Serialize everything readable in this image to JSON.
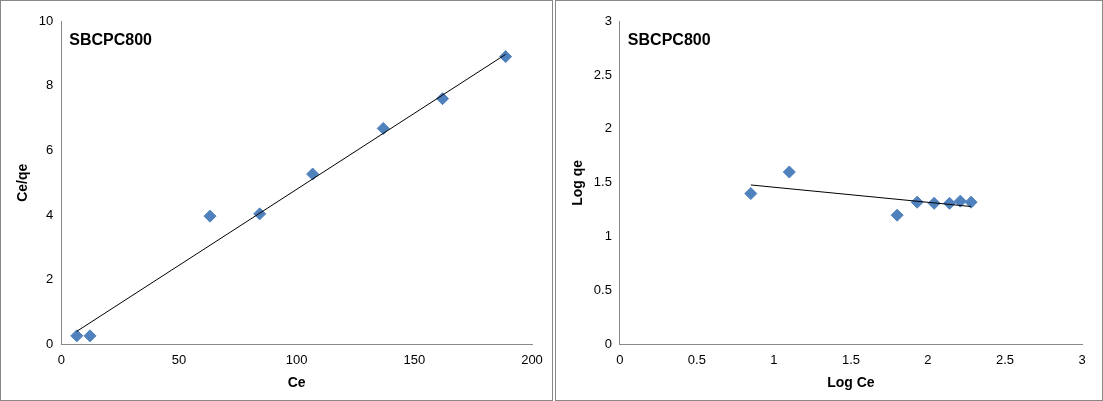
{
  "chart_data": [
    {
      "type": "scatter",
      "title": "SBCPC800",
      "xlabel": "Ce",
      "ylabel": "Ce/qe",
      "xlim": [
        0,
        200
      ],
      "xticks": [
        0,
        50,
        100,
        150,
        200
      ],
      "ylim": [
        0,
        10
      ],
      "yticks": [
        0,
        2,
        4,
        6,
        8,
        10
      ],
      "grid": false,
      "legend": false,
      "marker": "diamond",
      "series": [
        {
          "color": "#4f81bd",
          "x": [
            6.6,
            12.2,
            63.2,
            84.3,
            106.8,
            136.8,
            162,
            188.8
          ],
          "values": [
            0.27,
            0.27,
            3.97,
            4.04,
            5.27,
            6.68,
            7.6,
            8.9
          ]
        },
        {
          "type": "line",
          "color": "#000000",
          "marker": "none",
          "x": [
            6.6,
            188.8
          ],
          "values": [
            0.41,
            8.97
          ]
        }
      ]
    },
    {
      "type": "scatter",
      "title": "SBCPC800",
      "xlabel": "Log Ce",
      "ylabel": "Log qe",
      "xlim": [
        0,
        3
      ],
      "xticks": [
        0,
        0.5,
        1,
        1.5,
        2,
        2.5,
        3
      ],
      "ylim": [
        0,
        3
      ],
      "yticks": [
        0,
        0.5,
        1,
        1.5,
        2,
        2.5,
        3
      ],
      "grid": false,
      "legend": false,
      "marker": "diamond",
      "series": [
        {
          "color": "#4f81bd",
          "x": [
            0.85,
            1.1,
            1.8,
            1.93,
            2.04,
            2.14,
            2.21,
            2.28
          ],
          "values": [
            1.4,
            1.6,
            1.2,
            1.32,
            1.31,
            1.31,
            1.33,
            1.32
          ]
        },
        {
          "type": "line",
          "color": "#000000",
          "marker": "none",
          "x": [
            0.85,
            2.28
          ],
          "values": [
            1.48,
            1.28
          ]
        }
      ]
    }
  ]
}
